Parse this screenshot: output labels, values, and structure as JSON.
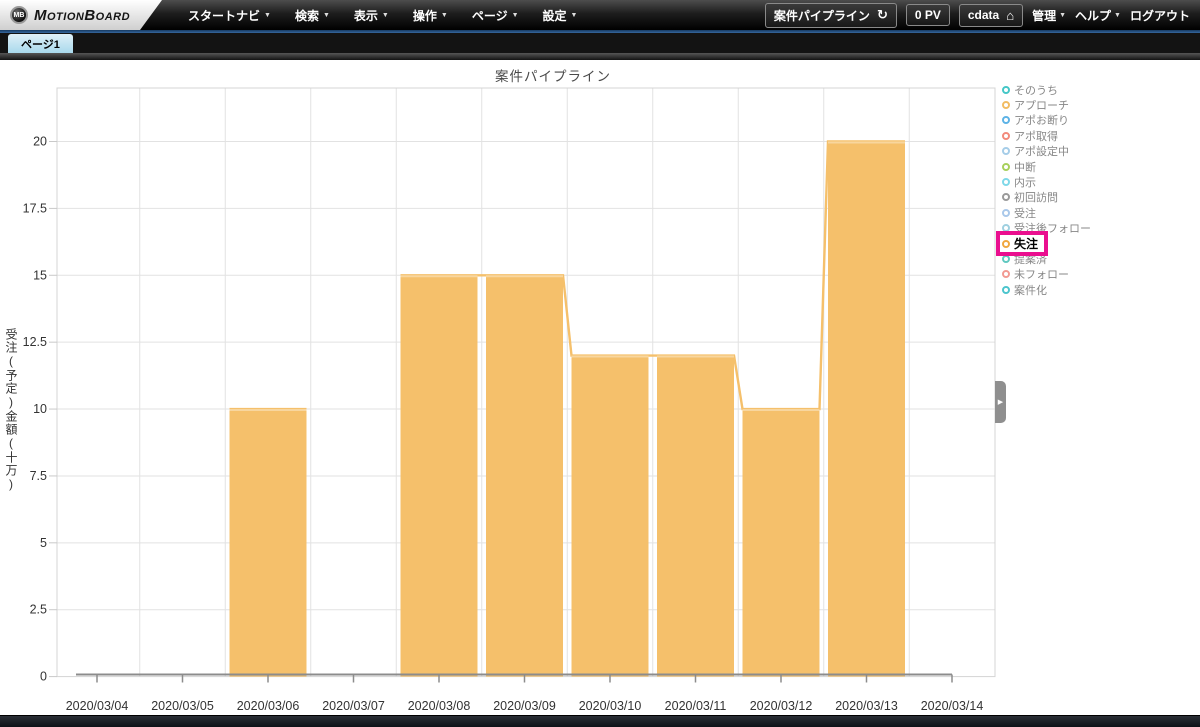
{
  "header": {
    "logo": {
      "badge": "MB",
      "text": "MotionBoard"
    },
    "menus": [
      "スタートナビ",
      "検索",
      "表示",
      "操作",
      "ページ",
      "設定"
    ],
    "board_button": {
      "label": "案件パイプライン",
      "refresh_icon": "↻"
    },
    "pv_counter": "0 PV",
    "user_button": {
      "label": "cdata",
      "home_icon": "⌂"
    },
    "admin_menu": "管理",
    "help_menu": "ヘルプ",
    "logout": "ログアウト",
    "accent_color": "#2f5f9f"
  },
  "tabs": {
    "active": "ページ1"
  },
  "chart_data": {
    "type": "bar",
    "title": "案件パイプライン",
    "xlabel": "",
    "ylabel": "受注(予定)金額(十万)",
    "categories": [
      "2020/03/04",
      "2020/03/05",
      "2020/03/06",
      "2020/03/07",
      "2020/03/08",
      "2020/03/09",
      "2020/03/10",
      "2020/03/11",
      "2020/03/12",
      "2020/03/13",
      "2020/03/14"
    ],
    "series": [
      {
        "name": "失注",
        "color": "#f5c06b",
        "values": [
          null,
          null,
          10,
          null,
          15,
          15,
          12,
          12,
          10,
          20,
          null
        ]
      }
    ],
    "yticks": [
      0,
      2.5,
      5,
      7.5,
      10,
      12.5,
      15,
      17.5,
      20
    ],
    "ylim": [
      0,
      22
    ],
    "grid": true,
    "line_overlay": true,
    "legend_position": "right",
    "grid_color": "#e2e2e2",
    "axis_color": "#8c8c8c",
    "tick_label_color": "#333333"
  },
  "legend": {
    "highlight_color": "#ea0f8f",
    "items": [
      {
        "label": "そのうち",
        "color": "#45c7c7"
      },
      {
        "label": "アプローチ",
        "color": "#f2bc62"
      },
      {
        "label": "アポお断り",
        "color": "#5db3e6"
      },
      {
        "label": "アポ取得",
        "color": "#f28a7b"
      },
      {
        "label": "アポ設定中",
        "color": "#a6cde8"
      },
      {
        "label": "中断",
        "color": "#a8d05c"
      },
      {
        "label": "内示",
        "color": "#7fd8e8"
      },
      {
        "label": "初回訪問",
        "color": "#9a9a9a"
      },
      {
        "label": "受注",
        "color": "#a9c8ea"
      },
      {
        "label": "受注後フォロー",
        "color": "#9fd0e0"
      },
      {
        "label": "失注",
        "color": "#f0a73f",
        "highlighted": true
      },
      {
        "label": "提案済",
        "color": "#5fc8c0"
      },
      {
        "label": "未フォロー",
        "color": "#f29a92"
      },
      {
        "label": "案件化",
        "color": "#4cc5cd"
      }
    ]
  },
  "panel_handle_icon": "▶"
}
